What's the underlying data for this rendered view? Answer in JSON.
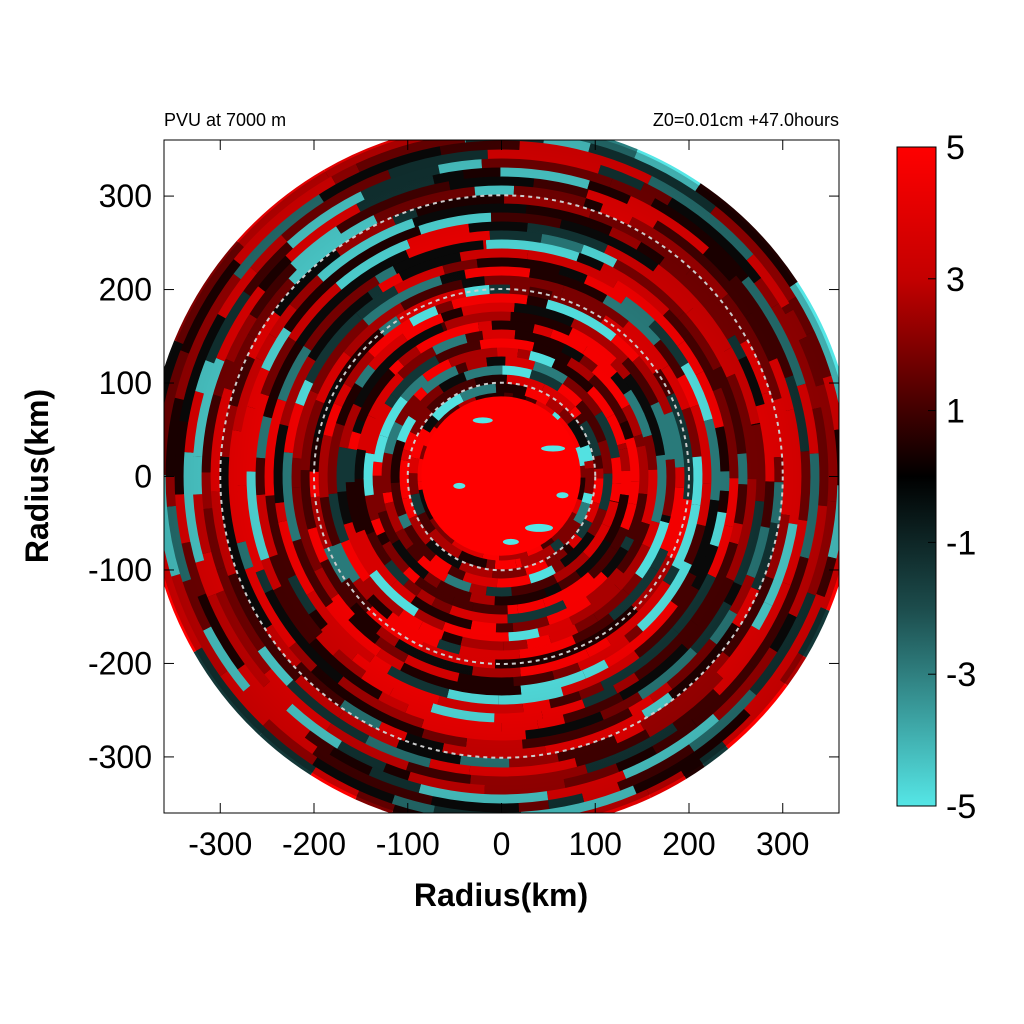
{
  "chart_data": {
    "type": "heatmap",
    "title_left": "PVU at  7000 m",
    "title_right": "Z0=0.01cm  +47.0hours",
    "xlabel": "Radius(km)",
    "ylabel": "Radius(km)",
    "xlim": [
      -360,
      360
    ],
    "ylim": [
      -360,
      360
    ],
    "xticks": [
      -300,
      -200,
      -100,
      0,
      100,
      200,
      300
    ],
    "yticks": [
      300,
      200,
      100,
      0,
      -100,
      -200,
      -300
    ],
    "xtick_labels": [
      "-300",
      "-200",
      "-100",
      "0",
      "100",
      "200",
      "300"
    ],
    "ytick_labels": [
      "300",
      "200",
      "100",
      "0",
      "-100",
      "-200",
      "-300"
    ],
    "reference_circles_km": [
      100,
      200,
      300
    ],
    "domain_radius_km": 375,
    "core_radius_km": 85,
    "colorbar": {
      "range": [
        -5,
        5
      ],
      "ticks": [
        "5",
        "3",
        "1",
        "-1",
        "-3",
        "-5"
      ],
      "colors": {
        "high": "#ff0000",
        "mid": "#000000",
        "low": "#55e6e6"
      }
    }
  }
}
